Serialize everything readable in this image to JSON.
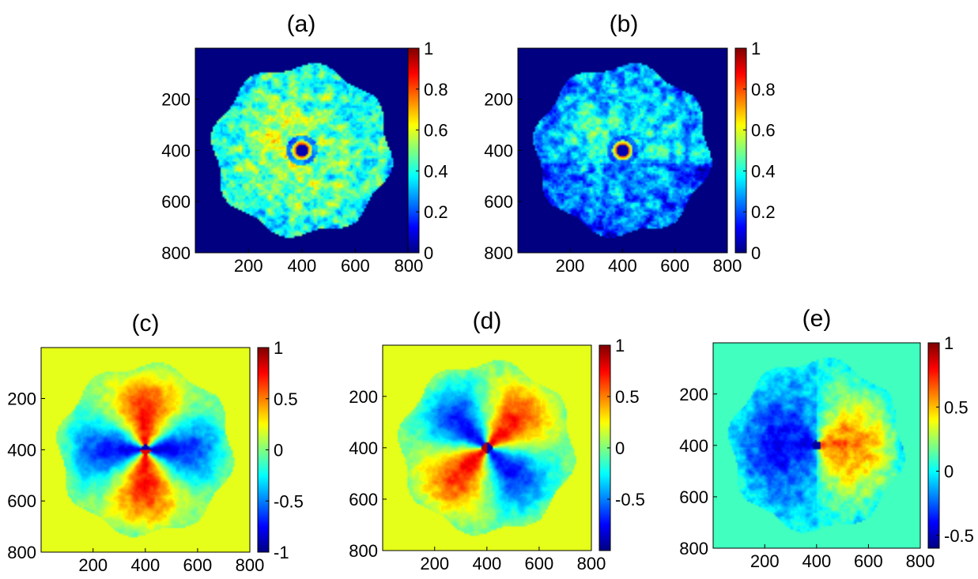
{
  "chart_data": [
    {
      "type": "heatmap",
      "title": "(a)",
      "xlabel": "",
      "ylabel": "",
      "xlim": [
        1,
        800
      ],
      "ylim": [
        1,
        800
      ],
      "x_ticks": [
        "200",
        "400",
        "600",
        "800"
      ],
      "y_ticks": [
        "200",
        "400",
        "600",
        "800"
      ],
      "colorbar": {
        "range": [
          0,
          1
        ],
        "ticks": [
          "0",
          "0.2",
          "0.4",
          "0.6",
          "0.8",
          "1"
        ]
      },
      "pattern": "disk",
      "colormap": "jet"
    },
    {
      "type": "heatmap",
      "title": "(b)",
      "xlabel": "",
      "ylabel": "",
      "xlim": [
        1,
        800
      ],
      "ylim": [
        1,
        800
      ],
      "x_ticks": [
        "200",
        "400",
        "600",
        "800"
      ],
      "y_ticks": [
        "200",
        "400",
        "600",
        "800"
      ],
      "colorbar": {
        "range": [
          0,
          1
        ],
        "ticks": [
          "0",
          "0.2",
          "0.4",
          "0.6",
          "0.8",
          "1"
        ]
      },
      "pattern": "disk-weak",
      "colormap": "jet"
    },
    {
      "type": "heatmap",
      "title": "(c)",
      "xlabel": "",
      "ylabel": "",
      "xlim": [
        1,
        800
      ],
      "ylim": [
        1,
        800
      ],
      "x_ticks": [
        "200",
        "400",
        "600",
        "800"
      ],
      "y_ticks": [
        "200",
        "400",
        "600",
        "800"
      ],
      "colorbar": {
        "range": [
          -1,
          1
        ],
        "ticks": [
          "-1",
          "-0.5",
          "0",
          "0.5",
          "1"
        ]
      },
      "pattern": "quadrupole-vertical",
      "colormap": "jet"
    },
    {
      "type": "heatmap",
      "title": "(d)",
      "xlabel": "",
      "ylabel": "",
      "xlim": [
        1,
        800
      ],
      "ylim": [
        1,
        800
      ],
      "x_ticks": [
        "200",
        "400",
        "600",
        "800"
      ],
      "y_ticks": [
        "200",
        "400",
        "600",
        "800"
      ],
      "colorbar": {
        "range": [
          -1,
          1
        ],
        "ticks": [
          "-0.5",
          "0",
          "0.5",
          "1"
        ]
      },
      "pattern": "quadrupole-diagonal",
      "colormap": "jet"
    },
    {
      "type": "heatmap",
      "title": "(e)",
      "xlabel": "",
      "ylabel": "",
      "xlim": [
        1,
        800
      ],
      "ylim": [
        1,
        800
      ],
      "x_ticks": [
        "200",
        "400",
        "600",
        "800"
      ],
      "y_ticks": [
        "200",
        "400",
        "600",
        "800"
      ],
      "colorbar": {
        "range": [
          -0.6,
          1
        ],
        "ticks": [
          "-0.5",
          "0",
          "0.5",
          "1"
        ]
      },
      "pattern": "dipole-horizontal",
      "colormap": "jet"
    }
  ]
}
